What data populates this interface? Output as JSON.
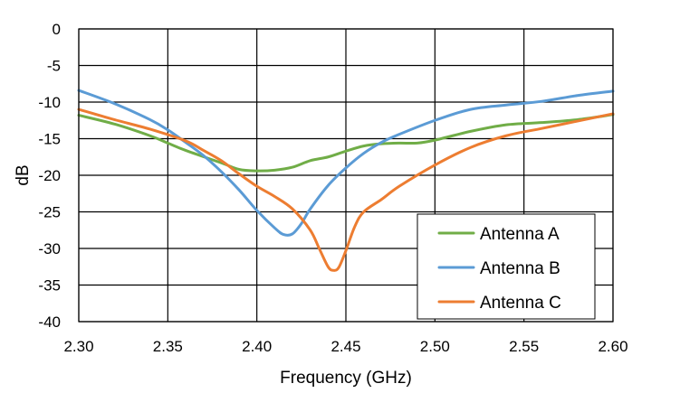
{
  "chart_data": {
    "type": "line",
    "title": "",
    "xlabel": "Frequency (GHz)",
    "ylabel": "dB",
    "xlim": [
      2.3,
      2.6
    ],
    "ylim": [
      -40,
      0
    ],
    "x_ticks": [
      "2.30",
      "2.35",
      "2.40",
      "2.45",
      "2.50",
      "2.55",
      "2.60"
    ],
    "y_ticks": [
      "0",
      "-5",
      "-10",
      "-15",
      "-20",
      "-25",
      "-30",
      "-35",
      "-40"
    ],
    "grid": true,
    "legend_position": "bottom-right",
    "series": [
      {
        "name": "Antenna A",
        "color": "#70ad47",
        "x": [
          2.3,
          2.32,
          2.34,
          2.35,
          2.36,
          2.38,
          2.39,
          2.4,
          2.41,
          2.42,
          2.43,
          2.44,
          2.45,
          2.46,
          2.47,
          2.48,
          2.49,
          2.5,
          2.52,
          2.54,
          2.56,
          2.58,
          2.6
        ],
        "y": [
          -11.8,
          -13.0,
          -14.6,
          -15.6,
          -16.6,
          -18.3,
          -19.2,
          -19.4,
          -19.3,
          -18.9,
          -18.0,
          -17.5,
          -16.7,
          -16.0,
          -15.7,
          -15.6,
          -15.6,
          -15.2,
          -14.0,
          -13.1,
          -12.8,
          -12.4,
          -11.7
        ]
      },
      {
        "name": "Antenna B",
        "color": "#5b9bd5",
        "x": [
          2.3,
          2.32,
          2.34,
          2.35,
          2.36,
          2.37,
          2.38,
          2.39,
          2.4,
          2.41,
          2.415,
          2.42,
          2.425,
          2.43,
          2.44,
          2.45,
          2.46,
          2.47,
          2.48,
          2.5,
          2.52,
          2.54,
          2.56,
          2.58,
          2.6
        ],
        "y": [
          -8.4,
          -10.2,
          -12.4,
          -13.8,
          -15.5,
          -17.3,
          -19.5,
          -22.0,
          -24.8,
          -27.2,
          -28.1,
          -28.0,
          -26.6,
          -24.6,
          -21.4,
          -19.0,
          -17.0,
          -15.5,
          -14.4,
          -12.5,
          -11.0,
          -10.4,
          -9.9,
          -9.1,
          -8.5
        ]
      },
      {
        "name": "Antenna C",
        "color": "#ed7d31",
        "x": [
          2.3,
          2.32,
          2.34,
          2.36,
          2.37,
          2.38,
          2.39,
          2.4,
          2.41,
          2.42,
          2.43,
          2.435,
          2.44,
          2.443,
          2.446,
          2.45,
          2.455,
          2.46,
          2.47,
          2.48,
          2.5,
          2.52,
          2.54,
          2.56,
          2.58,
          2.6
        ],
        "y": [
          -11.0,
          -12.4,
          -13.7,
          -15.3,
          -16.6,
          -18.0,
          -19.8,
          -21.5,
          -22.9,
          -24.6,
          -27.5,
          -30.0,
          -32.5,
          -33.0,
          -32.6,
          -30.3,
          -27.0,
          -25.0,
          -23.3,
          -21.5,
          -18.6,
          -16.2,
          -14.6,
          -13.6,
          -12.6,
          -11.6
        ]
      }
    ]
  }
}
